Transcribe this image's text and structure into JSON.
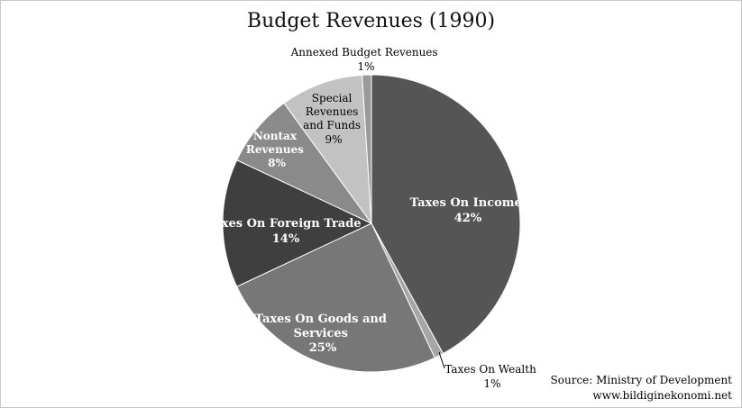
{
  "chart_data": {
    "type": "pie",
    "title": "Budget Revenues (1990)",
    "slices": [
      {
        "label": "Taxes On Income",
        "value": 42,
        "pct_text": "42%",
        "color": "#555555",
        "label_color": "#ffffff"
      },
      {
        "label": "Taxes On Wealth",
        "value": 1,
        "pct_text": "1%",
        "color": "#a6a6a6",
        "label_color": "#000000"
      },
      {
        "label": "Taxes On Goods and Services",
        "value": 25,
        "pct_text": "25%",
        "color": "#777777",
        "label_color": "#ffffff"
      },
      {
        "label": "Taxes On Foreign Trade",
        "value": 14,
        "pct_text": "14%",
        "color": "#3f3f3f",
        "label_color": "#ffffff"
      },
      {
        "label": "Nontax Revenues",
        "value": 8,
        "pct_text": "8%",
        "color": "#8a8a8a",
        "label_color": "#ffffff"
      },
      {
        "label": "Special Revenues and Funds",
        "value": 9,
        "pct_text": "9%",
        "color": "#c2c2c2",
        "label_color": "#000000"
      },
      {
        "label": "Annexed Budget Revenues",
        "value": 1,
        "pct_text": "1%",
        "color": "#9a9a9a",
        "label_color": "#000000"
      }
    ]
  },
  "source": {
    "line1": "Source: Ministry of Development",
    "line2": "www.bildiginekonomi.net"
  }
}
